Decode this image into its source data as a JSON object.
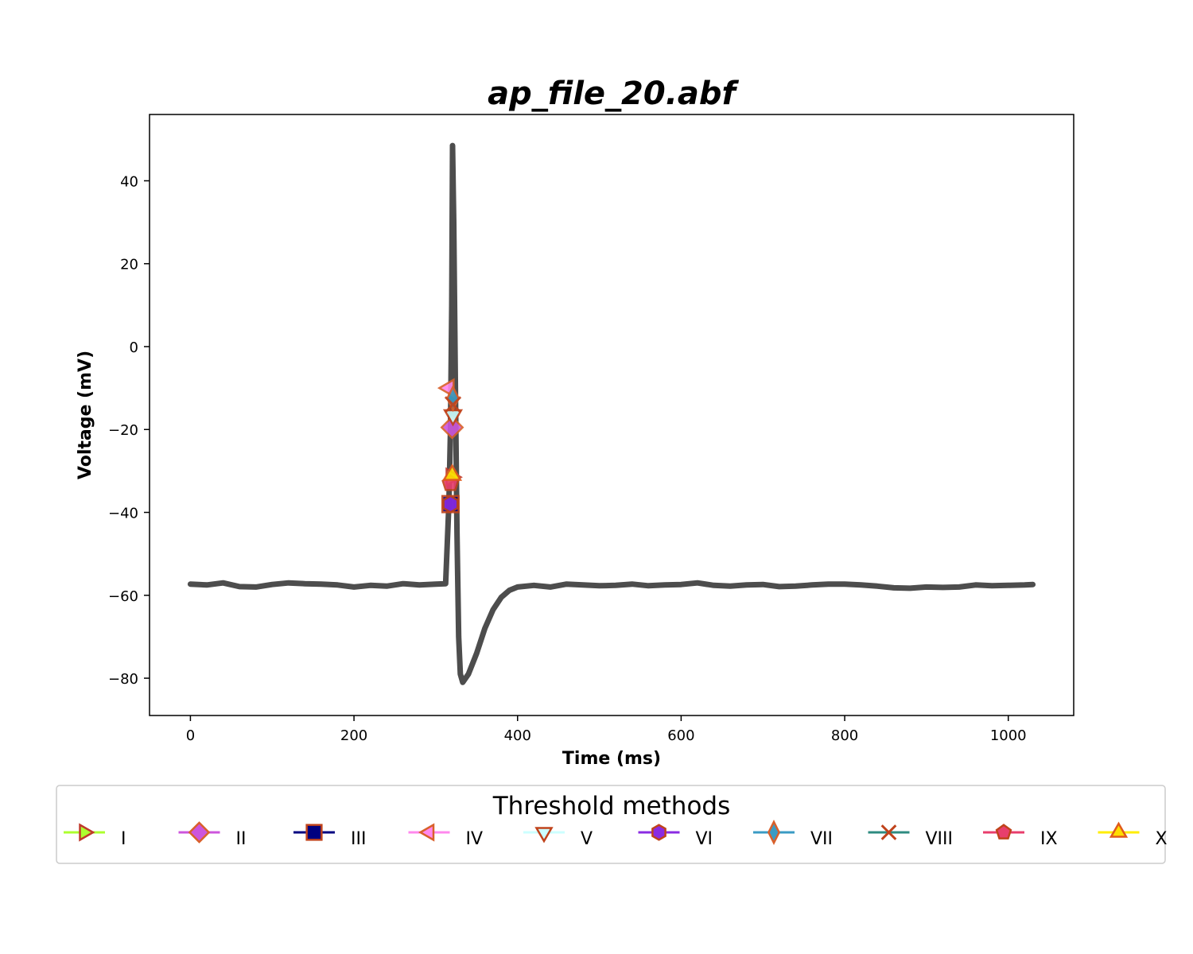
{
  "chart_data": {
    "type": "line",
    "title": "ap_file_20.abf",
    "xlabel": "Time (ms)",
    "ylabel": "Voltage (mV)",
    "xlim": [
      -50,
      1080
    ],
    "ylim": [
      -89,
      56
    ],
    "xticks": [
      0,
      200,
      400,
      600,
      800,
      1000
    ],
    "yticks": [
      40,
      20,
      0,
      -20,
      -40,
      -60,
      -80
    ],
    "trace": {
      "color": "#4d4d4d",
      "points": [
        [
          0,
          -57.3
        ],
        [
          20,
          -57.5
        ],
        [
          40,
          -57.0
        ],
        [
          60,
          -57.9
        ],
        [
          80,
          -58.0
        ],
        [
          100,
          -57.4
        ],
        [
          120,
          -57.0
        ],
        [
          140,
          -57.2
        ],
        [
          160,
          -57.3
        ],
        [
          180,
          -57.5
        ],
        [
          200,
          -58.0
        ],
        [
          220,
          -57.6
        ],
        [
          240,
          -57.8
        ],
        [
          260,
          -57.2
        ],
        [
          280,
          -57.5
        ],
        [
          300,
          -57.3
        ],
        [
          312,
          -57.2
        ],
        [
          316,
          -38.0
        ],
        [
          318,
          -20.0
        ],
        [
          319.5,
          10.0
        ],
        [
          320.5,
          48.5
        ],
        [
          322,
          30.0
        ],
        [
          324,
          -10.0
        ],
        [
          326,
          -45.0
        ],
        [
          328,
          -70.0
        ],
        [
          330,
          -79.0
        ],
        [
          333,
          -81.0
        ],
        [
          340,
          -79.0
        ],
        [
          350,
          -74.0
        ],
        [
          360,
          -68.0
        ],
        [
          370,
          -63.5
        ],
        [
          380,
          -60.5
        ],
        [
          390,
          -58.8
        ],
        [
          400,
          -58.0
        ],
        [
          420,
          -57.6
        ],
        [
          440,
          -58.0
        ],
        [
          460,
          -57.3
        ],
        [
          480,
          -57.5
        ],
        [
          500,
          -57.7
        ],
        [
          520,
          -57.6
        ],
        [
          540,
          -57.3
        ],
        [
          560,
          -57.7
        ],
        [
          580,
          -57.5
        ],
        [
          600,
          -57.4
        ],
        [
          620,
          -57.0
        ],
        [
          640,
          -57.6
        ],
        [
          660,
          -57.8
        ],
        [
          680,
          -57.5
        ],
        [
          700,
          -57.4
        ],
        [
          720,
          -57.9
        ],
        [
          740,
          -57.8
        ],
        [
          760,
          -57.5
        ],
        [
          780,
          -57.3
        ],
        [
          800,
          -57.3
        ],
        [
          820,
          -57.5
        ],
        [
          840,
          -57.8
        ],
        [
          860,
          -58.2
        ],
        [
          880,
          -58.3
        ],
        [
          900,
          -58.0
        ],
        [
          920,
          -58.1
        ],
        [
          940,
          -58.0
        ],
        [
          960,
          -57.5
        ],
        [
          980,
          -57.7
        ],
        [
          1000,
          -57.6
        ],
        [
          1020,
          -57.5
        ],
        [
          1030,
          -57.4
        ]
      ]
    },
    "threshold_points": [
      {
        "name": "I",
        "x": 319,
        "y": -31.5,
        "marker": "triangle-right",
        "line_color": "#adff2f",
        "fill": "#adff2f",
        "edge": "#c0392b"
      },
      {
        "name": "II",
        "x": 320,
        "y": -19.5,
        "marker": "diamond",
        "line_color": "#cc55dd",
        "fill": "#cc55dd",
        "edge": "#d9602b"
      },
      {
        "name": "III",
        "x": 318,
        "y": -38.0,
        "marker": "square",
        "line_color": "#000080",
        "fill": "#000080",
        "edge": "#c0431b"
      },
      {
        "name": "IV",
        "x": 316,
        "y": -10.0,
        "marker": "triangle-left",
        "line_color": "#ff88ee",
        "fill": "#ff88ee",
        "edge": "#d9602b"
      },
      {
        "name": "V",
        "x": 321,
        "y": -16.5,
        "marker": "triangle-down",
        "line_color": "#ccffff",
        "fill": "#ccffff",
        "edge": "#c0431b"
      },
      {
        "name": "VI",
        "x": 318,
        "y": -38.0,
        "marker": "hexagon",
        "line_color": "#8a2be2",
        "fill": "#8a2be2",
        "edge": "#c0431b"
      },
      {
        "name": "VII",
        "x": 321,
        "y": -12.5,
        "marker": "thin-diamond",
        "line_color": "#3a9bc4",
        "fill": "#3a9bc4",
        "edge": "#d9602b"
      },
      {
        "name": "VIII",
        "x": 321,
        "y": -14.0,
        "marker": "x",
        "line_color": "#2e8b80",
        "fill": "#2e8b80",
        "edge": "#c0431b"
      },
      {
        "name": "IX",
        "x": 318,
        "y": -33.0,
        "marker": "pentagon",
        "line_color": "#e83e6c",
        "fill": "#e83e6c",
        "edge": "#c0431b"
      },
      {
        "name": "X",
        "x": 320,
        "y": -31.0,
        "marker": "triangle-up",
        "line_color": "#ffee00",
        "fill": "#ffdd00",
        "edge": "#e05a1b"
      }
    ],
    "legend": {
      "title": "Threshold methods",
      "placement": "bottom-center"
    }
  }
}
